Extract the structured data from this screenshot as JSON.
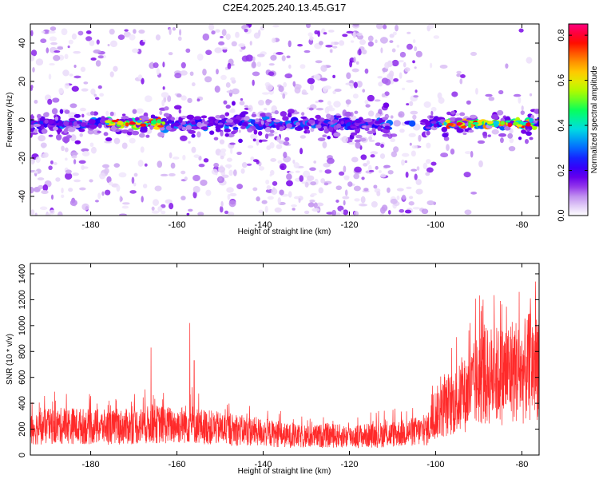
{
  "title": "C2E4.2025.240.13.45.G17",
  "chart_data": [
    {
      "type": "heatmap",
      "name": "spectrogram",
      "xlabel": "Height of straight line (km)",
      "ylabel": "Frequency (Hz)",
      "xlim": [
        -194,
        -76
      ],
      "ylim": [
        -50,
        50
      ],
      "xticks": [
        -180,
        -160,
        -140,
        -120,
        -100,
        -80
      ],
      "yticks": [
        -40,
        -20,
        0,
        20,
        40
      ],
      "colorbar": {
        "label": "Normalized spectral amplitude",
        "range": [
          0.0,
          0.85
        ],
        "ticks": [
          0.0,
          0.2,
          0.4,
          0.6,
          0.8
        ],
        "colormap": [
          "#ffffff",
          "#c8a0f0",
          "#7800e8",
          "#2000ff",
          "#0078ff",
          "#00e0e0",
          "#00ff60",
          "#a0ff00",
          "#ffe000",
          "#ff8000",
          "#ff0000",
          "#ff0080"
        ]
      },
      "features": {
        "main_band_center_hz": -2,
        "main_band_gap_km": [
          -111,
          -103
        ],
        "dense_scatter_km": [
          -150,
          -104
        ],
        "high_amplitude_segments_km": [
          [
            -176,
            -163
          ],
          [
            -98,
            -77
          ]
        ]
      }
    },
    {
      "type": "line",
      "name": "snr",
      "xlabel": "Height of straight line (km)",
      "ylabel": "SNR (10 * v/v)",
      "xlim": [
        -194,
        -76
      ],
      "ylim": [
        0,
        1480
      ],
      "xticks": [
        -180,
        -160,
        -140,
        -120,
        -100,
        -80
      ],
      "yticks": [
        0,
        200,
        400,
        600,
        800,
        1000,
        1200,
        1400
      ],
      "color": "#ff2a2a",
      "series": [
        {
          "name": "SNR",
          "x": [
            -194,
            -190,
            -185,
            -180,
            -175,
            -170,
            -165,
            -160,
            -157,
            -155,
            -150,
            -145,
            -140,
            -135,
            -130,
            -125,
            -120,
            -115,
            -110,
            -105,
            -102,
            -100,
            -97,
            -95,
            -92,
            -90,
            -87,
            -85,
            -82,
            -80,
            -78,
            -76
          ],
          "values": [
            220,
            230,
            240,
            230,
            225,
            235,
            250,
            240,
            260,
            235,
            215,
            200,
            185,
            160,
            145,
            160,
            150,
            160,
            170,
            190,
            200,
            340,
            400,
            440,
            520,
            620,
            650,
            640,
            700,
            660,
            720,
            780
          ]
        }
      ],
      "peaks": [
        {
          "x": -194,
          "y": 600
        },
        {
          "x": -166,
          "y": 830
        },
        {
          "x": -157,
          "y": 1020
        },
        {
          "x": -156,
          "y": 730
        },
        {
          "x": -92,
          "y": 1020
        },
        {
          "x": -89,
          "y": 1200
        },
        {
          "x": -85,
          "y": 1190
        },
        {
          "x": -78,
          "y": 1210
        },
        {
          "x": -76,
          "y": 1470
        }
      ]
    }
  ]
}
